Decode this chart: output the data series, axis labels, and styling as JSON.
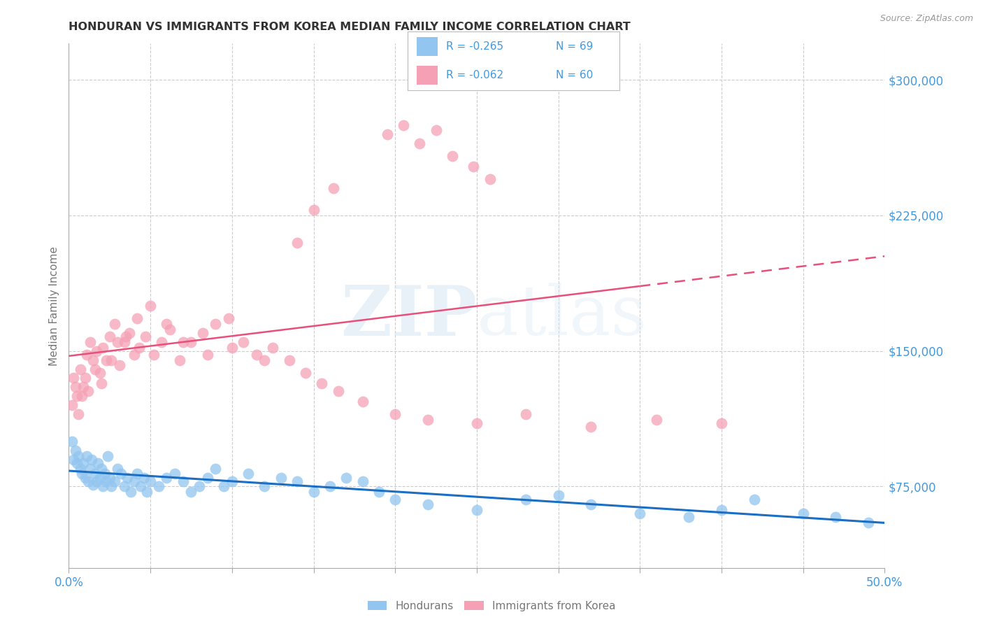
{
  "title": "HONDURAN VS IMMIGRANTS FROM KOREA MEDIAN FAMILY INCOME CORRELATION CHART",
  "source": "Source: ZipAtlas.com",
  "ylabel": "Median Family Income",
  "xlim": [
    0.0,
    0.5
  ],
  "ylim": [
    30000,
    320000
  ],
  "yticks": [
    75000,
    150000,
    225000,
    300000
  ],
  "ytick_labels": [
    "$75,000",
    "$150,000",
    "$225,000",
    "$300,000"
  ],
  "xticks": [
    0.0,
    0.05,
    0.1,
    0.15,
    0.2,
    0.25,
    0.3,
    0.35,
    0.4,
    0.45,
    0.5
  ],
  "honduran_color": "#92C5F0",
  "korea_color": "#F5A0B5",
  "trend_honduran_color": "#1A6FC4",
  "trend_korea_color": "#E8507A",
  "legend_R1": "-0.265",
  "legend_N1": "69",
  "legend_R2": "-0.062",
  "legend_N2": "60",
  "watermark_zip": "ZIP",
  "watermark_atlas": "atlas",
  "background_color": "#ffffff",
  "title_color": "#333333",
  "axis_label_color": "#777777",
  "tick_label_color": "#4499DD",
  "grid_color": "#cccccc",
  "honduran_scatter_x": [
    0.002,
    0.003,
    0.004,
    0.005,
    0.006,
    0.007,
    0.008,
    0.009,
    0.01,
    0.011,
    0.012,
    0.013,
    0.014,
    0.015,
    0.016,
    0.017,
    0.018,
    0.019,
    0.02,
    0.021,
    0.022,
    0.023,
    0.024,
    0.025,
    0.026,
    0.028,
    0.03,
    0.032,
    0.034,
    0.036,
    0.038,
    0.04,
    0.042,
    0.044,
    0.046,
    0.048,
    0.05,
    0.055,
    0.06,
    0.065,
    0.07,
    0.075,
    0.08,
    0.085,
    0.09,
    0.095,
    0.1,
    0.11,
    0.12,
    0.13,
    0.14,
    0.15,
    0.16,
    0.17,
    0.18,
    0.19,
    0.2,
    0.22,
    0.25,
    0.28,
    0.3,
    0.32,
    0.35,
    0.38,
    0.4,
    0.42,
    0.45,
    0.47,
    0.49
  ],
  "honduran_scatter_y": [
    100000,
    90000,
    95000,
    88000,
    92000,
    85000,
    82000,
    88000,
    80000,
    92000,
    78000,
    85000,
    90000,
    76000,
    82000,
    78000,
    88000,
    80000,
    85000,
    75000,
    82000,
    78000,
    92000,
    80000,
    75000,
    78000,
    85000,
    82000,
    75000,
    80000,
    72000,
    78000,
    82000,
    75000,
    80000,
    72000,
    78000,
    75000,
    80000,
    82000,
    78000,
    72000,
    75000,
    80000,
    85000,
    75000,
    78000,
    82000,
    75000,
    80000,
    78000,
    72000,
    75000,
    80000,
    78000,
    72000,
    68000,
    65000,
    62000,
    68000,
    70000,
    65000,
    60000,
    58000,
    62000,
    68000,
    60000,
    58000,
    55000
  ],
  "korea_scatter_x": [
    0.003,
    0.005,
    0.007,
    0.009,
    0.011,
    0.013,
    0.015,
    0.017,
    0.019,
    0.021,
    0.023,
    0.025,
    0.028,
    0.031,
    0.034,
    0.037,
    0.04,
    0.043,
    0.047,
    0.052,
    0.057,
    0.062,
    0.068,
    0.075,
    0.082,
    0.09,
    0.098,
    0.107,
    0.115,
    0.125,
    0.135,
    0.145,
    0.155,
    0.165,
    0.18,
    0.2,
    0.22,
    0.25,
    0.28,
    0.32,
    0.36,
    0.4,
    0.002,
    0.004,
    0.006,
    0.008,
    0.01,
    0.012,
    0.016,
    0.02,
    0.026,
    0.03,
    0.035,
    0.042,
    0.05,
    0.06,
    0.07,
    0.085,
    0.1,
    0.12
  ],
  "korea_scatter_y": [
    135000,
    125000,
    140000,
    130000,
    148000,
    155000,
    145000,
    150000,
    138000,
    152000,
    145000,
    158000,
    165000,
    142000,
    155000,
    160000,
    148000,
    152000,
    158000,
    148000,
    155000,
    162000,
    145000,
    155000,
    160000,
    165000,
    168000,
    155000,
    148000,
    152000,
    145000,
    138000,
    132000,
    128000,
    122000,
    115000,
    112000,
    110000,
    115000,
    108000,
    112000,
    110000,
    120000,
    130000,
    115000,
    125000,
    135000,
    128000,
    140000,
    132000,
    145000,
    155000,
    158000,
    168000,
    175000,
    165000,
    155000,
    148000,
    152000,
    145000
  ],
  "korea_high_x": [
    0.195,
    0.205,
    0.215,
    0.225,
    0.235,
    0.248,
    0.258,
    0.15,
    0.162,
    0.14
  ],
  "korea_high_y": [
    270000,
    275000,
    265000,
    272000,
    258000,
    252000,
    245000,
    228000,
    240000,
    210000
  ]
}
